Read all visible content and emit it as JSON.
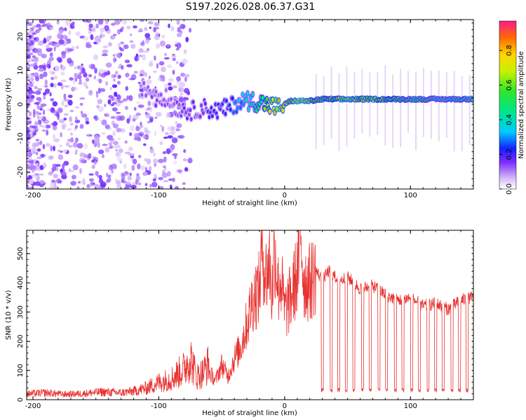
{
  "chart_data": [
    {
      "type": "heatmap",
      "title": "S197.2026.028.06.37.G31",
      "xlabel": "Height of straight line (km)",
      "ylabel": "Frequency (Hz)",
      "xlim": [
        -205,
        150
      ],
      "ylim": [
        -25,
        25
      ],
      "xticks": [
        -200,
        -100,
        0,
        100
      ],
      "yticks": [
        -20,
        -10,
        0,
        10,
        20
      ],
      "colorbar": {
        "label": "Normalized spectral amplitude",
        "range": [
          0,
          0.97
        ],
        "ticks": [
          0.0,
          0.2,
          0.4,
          0.6,
          0.8
        ]
      },
      "ridge": [
        {
          "x": -115,
          "y": 5,
          "amp": 0.12
        },
        {
          "x": -105,
          "y": 4,
          "amp": 0.15
        },
        {
          "x": -95,
          "y": 2,
          "amp": 0.14
        },
        {
          "x": -85,
          "y": -1,
          "amp": 0.16
        },
        {
          "x": -75,
          "y": -2,
          "amp": 0.18
        },
        {
          "x": -65,
          "y": -1,
          "amp": 0.2
        },
        {
          "x": -55,
          "y": -2,
          "amp": 0.22
        },
        {
          "x": -45,
          "y": -1,
          "amp": 0.25
        },
        {
          "x": -35,
          "y": 1,
          "amp": 0.35
        },
        {
          "x": -25,
          "y": 1,
          "amp": 0.45
        },
        {
          "x": -15,
          "y": 0,
          "amp": 0.65
        },
        {
          "x": -5,
          "y": -1,
          "amp": 0.85
        },
        {
          "x": 5,
          "y": 1,
          "amp": 0.7
        },
        {
          "x": 12,
          "y": 1,
          "amp": 0.9
        },
        {
          "x": 20,
          "y": 1,
          "amp": 0.75
        },
        {
          "x": 30,
          "y": 1.5,
          "amp": 0.6
        },
        {
          "x": 40,
          "y": 1.5,
          "amp": 0.7
        },
        {
          "x": 50,
          "y": 1.5,
          "amp": 0.8
        },
        {
          "x": 60,
          "y": 1.5,
          "amp": 0.7
        },
        {
          "x": 70,
          "y": 1.5,
          "amp": 0.75
        },
        {
          "x": 80,
          "y": 1.5,
          "amp": 0.7
        },
        {
          "x": 90,
          "y": 1.5,
          "amp": 0.6
        },
        {
          "x": 100,
          "y": 1.5,
          "amp": 0.55
        },
        {
          "x": 110,
          "y": 1.5,
          "amp": 0.55
        },
        {
          "x": 120,
          "y": 1.5,
          "amp": 0.5
        },
        {
          "x": 130,
          "y": 1.5,
          "amp": 0.5
        },
        {
          "x": 140,
          "y": 1.5,
          "amp": 0.55
        },
        {
          "x": 150,
          "y": 1.5,
          "amp": 0.5
        }
      ]
    },
    {
      "type": "line",
      "xlabel": "Height of straight line (km)",
      "ylabel": "SNR (10 * v/v)",
      "xlim": [
        -205,
        150
      ],
      "ylim": [
        0,
        580
      ],
      "xticks": [
        -200,
        -100,
        0,
        100
      ],
      "yticks": [
        0,
        100,
        200,
        300,
        400,
        500
      ],
      "color": "#e8312f",
      "series": [
        {
          "name": "SNR",
          "x": [
            -205,
            -190,
            -175,
            -160,
            -145,
            -130,
            -120,
            -110,
            -100,
            -90,
            -80,
            -75,
            -70,
            -65,
            -60,
            -55,
            -50,
            -45,
            -40,
            -35,
            -30,
            -25,
            -20,
            -18,
            -15,
            -12,
            -10,
            -8,
            -5,
            -3,
            0,
            5,
            10,
            13,
            15,
            20,
            25,
            30,
            35,
            40,
            45,
            50,
            55,
            60,
            70,
            80,
            90,
            100,
            110,
            120,
            130,
            140,
            150
          ],
          "values": [
            15,
            18,
            14,
            16,
            20,
            18,
            22,
            30,
            45,
            55,
            80,
            110,
            60,
            70,
            95,
            65,
            120,
            80,
            140,
            180,
            260,
            350,
            380,
            540,
            420,
            470,
            350,
            540,
            380,
            420,
            300,
            350,
            430,
            580,
            410,
            400,
            440,
            410,
            440,
            420,
            410,
            420,
            400,
            380,
            390,
            360,
            340,
            350,
            320,
            330,
            310,
            340,
            350
          ]
        }
      ],
      "dropouts": [
        30,
        37,
        43,
        49,
        55,
        62,
        68,
        75,
        81,
        88,
        94,
        101,
        107,
        114,
        120,
        126,
        133,
        139,
        145
      ],
      "dropout_level": 25
    }
  ]
}
